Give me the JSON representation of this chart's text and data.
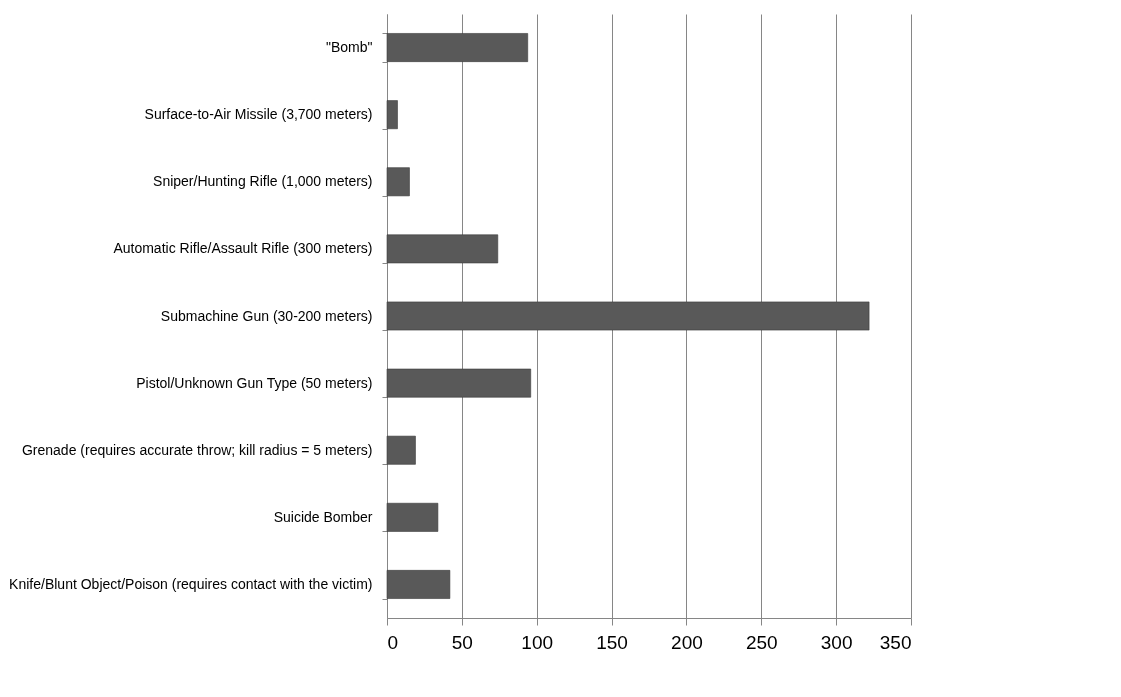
{
  "chart_data": {
    "type": "bar",
    "orientation": "horizontal",
    "categories": [
      "\"Bomb\"",
      "Surface-to-Air Missile (3,700 meters)",
      "Sniper/Hunting Rifle (1,000 meters)",
      "Automatic Rifle/Assault Rifle (300 meters)",
      "Submachine Gun (30-200 meters)",
      "Pistol/Unknown Gun Type (50 meters)",
      "Grenade (requires accurate throw; kill radius = 5 meters)",
      "Suicide Bomber",
      "Knife/Blunt Object/Poison (requires contact with the victim)"
    ],
    "values": [
      94,
      7,
      15,
      74,
      322,
      96,
      19,
      34,
      42
    ],
    "color": "#595959",
    "xlim": [
      0,
      350
    ],
    "xticks": [
      0,
      50,
      100,
      150,
      200,
      250,
      300,
      350
    ],
    "grid": "x"
  }
}
